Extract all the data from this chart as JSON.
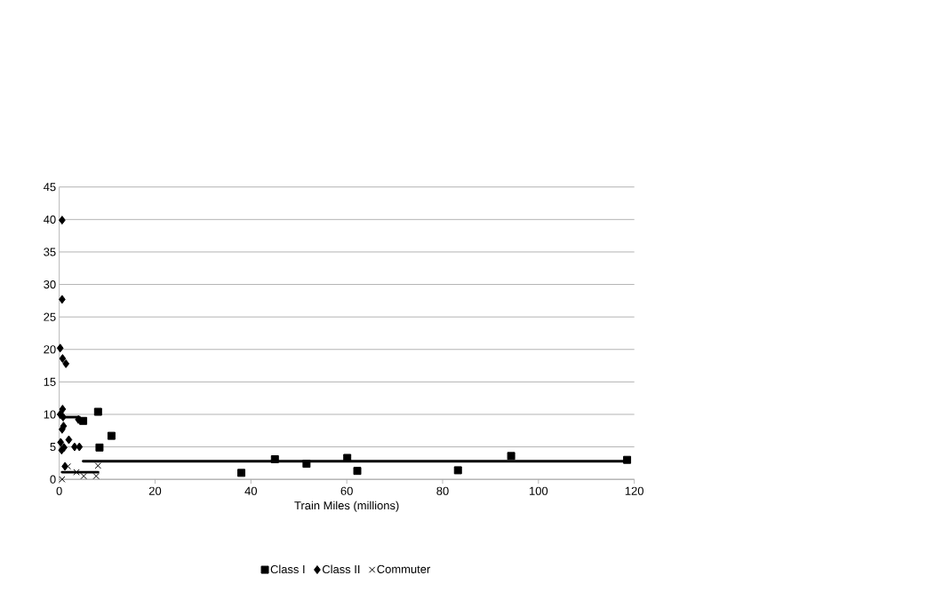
{
  "chart_data": {
    "type": "scatter",
    "xlabel": "Train Miles (millions)",
    "xlim": [
      0,
      120
    ],
    "xticks": [
      0,
      20,
      40,
      60,
      80,
      100,
      120
    ],
    "ylim": [
      0,
      45
    ],
    "yticks": [
      0,
      5,
      10,
      15,
      20,
      25,
      30,
      35,
      40,
      45
    ],
    "grid": "y",
    "legend": "bottom",
    "series": [
      {
        "name": "Class I",
        "color": "#000000",
        "marker": "square",
        "x": [
          8.1,
          5.0,
          10.9,
          8.4,
          38.0,
          45.0,
          51.6,
          60.1,
          62.2,
          83.2,
          94.3,
          118.5
        ],
        "values": [
          10.4,
          9.0,
          6.7,
          4.9,
          1.0,
          3.1,
          2.4,
          3.3,
          1.3,
          1.4,
          3.6,
          3.0
        ]
      },
      {
        "name": "Class II",
        "color": "#000000",
        "marker": "diamond",
        "x": [
          0.6,
          0.6,
          0.2,
          0.7,
          1.4,
          0.7,
          0.2,
          0.8,
          0.6,
          0.9,
          0.3,
          0.5,
          1.0,
          2.0,
          3.2,
          4.2,
          1.2,
          4.0
        ],
        "values": [
          39.9,
          27.7,
          20.2,
          18.6,
          17.8,
          10.8,
          10.0,
          9.6,
          7.7,
          8.2,
          5.7,
          4.5,
          4.9,
          6.1,
          5.0,
          5.0,
          2.0,
          9.2
        ]
      },
      {
        "name": "Commuter",
        "color": "#000000",
        "marker": "cross",
        "x": [
          0.6,
          1.8,
          3.6,
          5.1,
          7.7,
          8.1
        ],
        "values": [
          0.0,
          2.0,
          1.1,
          0.5,
          0.5,
          2.1
        ]
      },
      {
        "type": "line",
        "color": "#000000",
        "marker": "none",
        "x": [
          5.0,
          118.5
        ],
        "values": [
          2.8,
          2.8
        ]
      },
      {
        "type": "line",
        "color": "#000000",
        "marker": "none",
        "x": [
          0.2,
          4.2
        ],
        "values": [
          9.6,
          9.6
        ]
      },
      {
        "type": "line",
        "color": "#000000",
        "marker": "none",
        "x": [
          0.6,
          8.1
        ],
        "values": [
          1.1,
          1.1
        ]
      }
    ]
  }
}
